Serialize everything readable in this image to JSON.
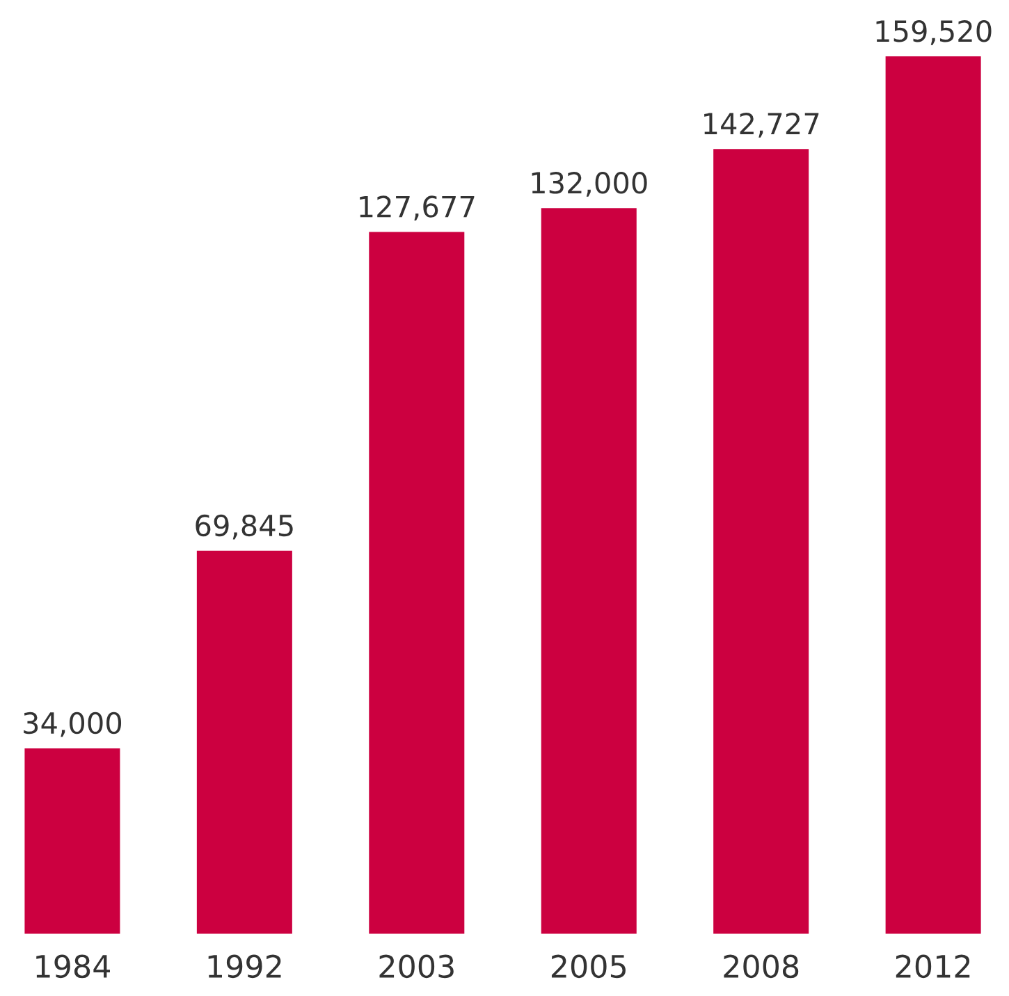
{
  "chart_data": {
    "type": "bar",
    "categories": [
      "1984",
      "1992",
      "2003",
      "2005",
      "2008",
      "2012"
    ],
    "values": [
      34000,
      69845,
      127677,
      132000,
      142727,
      159520
    ],
    "value_labels": [
      "34,000",
      "69,845",
      "127,677",
      "132,000",
      "142,727",
      "159,520"
    ],
    "color": "#cc0040",
    "grid": false,
    "legend": false
  }
}
